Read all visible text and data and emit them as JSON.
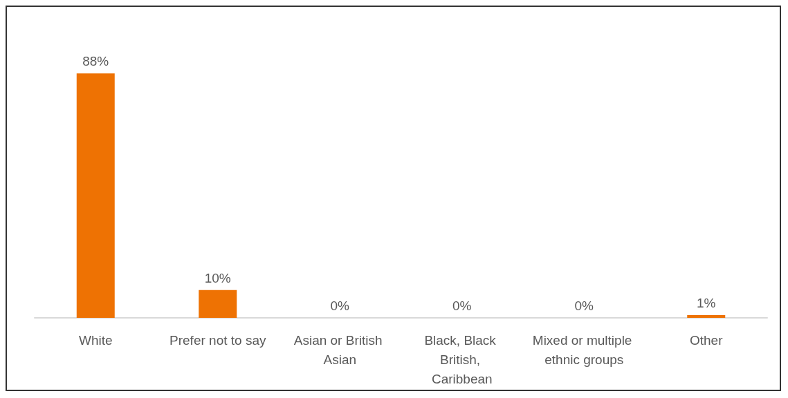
{
  "chart_data": {
    "type": "bar",
    "categories": [
      "White",
      "Prefer not to say",
      "Asian or British Asian",
      "Black, Black British, Caribbean",
      "Mixed or multiple ethnic groups",
      "Other"
    ],
    "values": [
      88,
      10,
      0,
      0,
      0,
      1
    ],
    "value_labels": [
      "88%",
      "10%",
      "0%",
      "0%",
      "0%",
      "1%"
    ],
    "color": "#ee7203"
  }
}
